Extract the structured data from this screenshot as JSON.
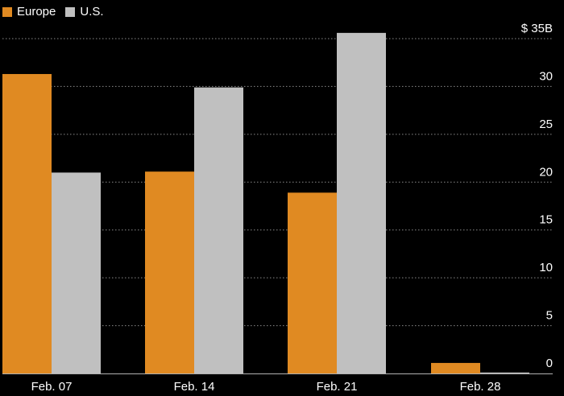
{
  "chart_data": {
    "type": "bar",
    "categories": [
      "Feb. 07",
      "Feb. 14",
      "Feb. 21",
      "Feb. 28"
    ],
    "series": [
      {
        "name": "Europe",
        "color": "#e08a22",
        "values": [
          31.3,
          21.1,
          18.9,
          1.1
        ]
      },
      {
        "name": "U.S.",
        "color": "#c0c0c0",
        "values": [
          21.0,
          29.9,
          35.6,
          0.1
        ]
      }
    ],
    "yticks": [
      {
        "value": 0,
        "label": "0"
      },
      {
        "value": 5,
        "label": "5"
      },
      {
        "value": 10,
        "label": "10"
      },
      {
        "value": 15,
        "label": "15"
      },
      {
        "value": 20,
        "label": "20"
      },
      {
        "value": 25,
        "label": "25"
      },
      {
        "value": 30,
        "label": "30"
      },
      {
        "value": 35,
        "label": "$ 35B"
      }
    ],
    "ylim": [
      0,
      35
    ],
    "y_axis_position": "right",
    "grid": true,
    "legend_position": "top-left",
    "title": "",
    "xlabel": "",
    "ylabel": ""
  }
}
